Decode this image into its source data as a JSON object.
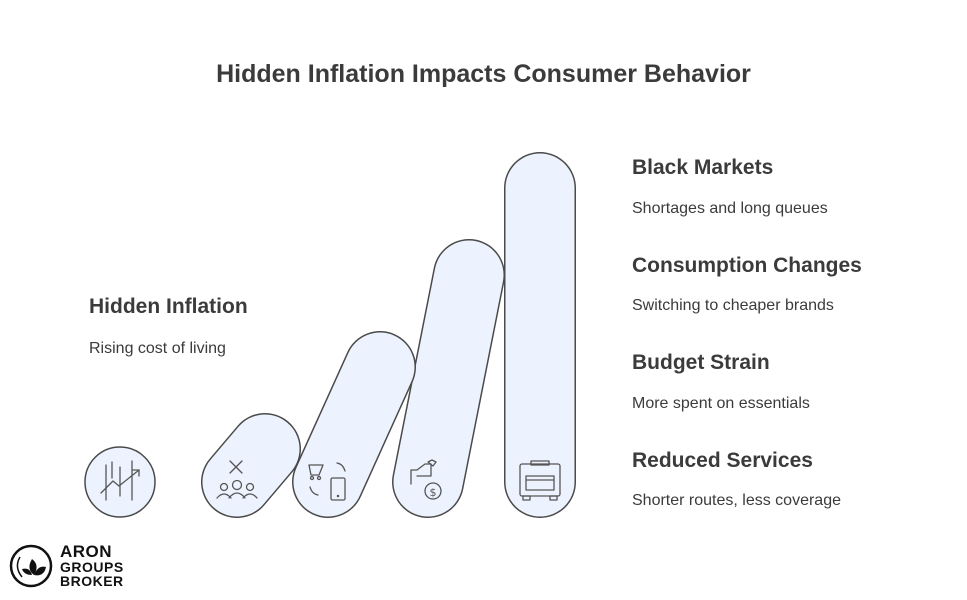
{
  "title": "Hidden Inflation Impacts Consumer Behavior",
  "left": {
    "heading": "Hidden Inflation",
    "sub": "Rising cost of living",
    "icon": "chart-trend-up-icon"
  },
  "items": [
    {
      "heading": "Black Markets",
      "sub": "Shortages and long queues",
      "icon": "bus-icon"
    },
    {
      "heading": "Consumption Changes",
      "sub": "Switching to cheaper brands",
      "icon": "money-bag-hand-icon"
    },
    {
      "heading": "Budget Strain",
      "sub": "More spent on essentials",
      "icon": "cart-phone-swap-icon"
    },
    {
      "heading": "Reduced Services",
      "sub": "Shorter routes, less coverage",
      "icon": "people-cancel-icon"
    }
  ],
  "colors": {
    "fill": "#edf3fe",
    "stroke": "#4a4a4a"
  },
  "logo": {
    "line1": "ARON",
    "line2": "GROUPS",
    "line3": "BROKER"
  }
}
